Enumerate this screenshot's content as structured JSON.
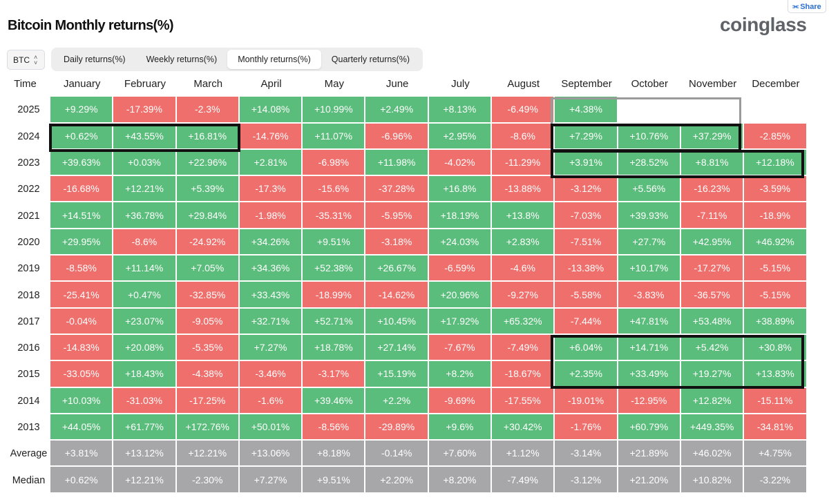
{
  "share_label": "Share",
  "title": "Bitcoin Monthly returns(%)",
  "logo_text": "coinglass",
  "coin_select": "BTC",
  "tabs": [
    {
      "label": "Daily returns(%)",
      "active": false
    },
    {
      "label": "Weekly returns(%)",
      "active": false
    },
    {
      "label": "Monthly returns(%)",
      "active": true
    },
    {
      "label": "Quarterly returns(%)",
      "active": false
    }
  ],
  "table": {
    "corner_label": "Time",
    "months": [
      "January",
      "February",
      "March",
      "April",
      "May",
      "June",
      "July",
      "August",
      "September",
      "October",
      "November",
      "December"
    ],
    "rows": [
      {
        "label": "2025",
        "values": [
          "+9.29%",
          "-17.39%",
          "-2.3%",
          "+14.08%",
          "+10.99%",
          "+2.49%",
          "+8.13%",
          "-6.49%",
          "+4.38%",
          "",
          "",
          ""
        ]
      },
      {
        "label": "2024",
        "values": [
          "+0.62%",
          "+43.55%",
          "+16.81%",
          "-14.76%",
          "+11.07%",
          "-6.96%",
          "+2.95%",
          "-8.6%",
          "+7.29%",
          "+10.76%",
          "+37.29%",
          "-2.85%"
        ]
      },
      {
        "label": "2023",
        "values": [
          "+39.63%",
          "+0.03%",
          "+22.96%",
          "+2.81%",
          "-6.98%",
          "+11.98%",
          "-4.02%",
          "-11.29%",
          "+3.91%",
          "+28.52%",
          "+8.81%",
          "+12.18%"
        ]
      },
      {
        "label": "2022",
        "values": [
          "-16.68%",
          "+12.21%",
          "+5.39%",
          "-17.3%",
          "-15.6%",
          "-37.28%",
          "+16.8%",
          "-13.88%",
          "-3.12%",
          "+5.56%",
          "-16.23%",
          "-3.59%"
        ]
      },
      {
        "label": "2021",
        "values": [
          "+14.51%",
          "+36.78%",
          "+29.84%",
          "-1.98%",
          "-35.31%",
          "-5.95%",
          "+18.19%",
          "+13.8%",
          "-7.03%",
          "+39.93%",
          "-7.11%",
          "-18.9%"
        ]
      },
      {
        "label": "2020",
        "values": [
          "+29.95%",
          "-8.6%",
          "-24.92%",
          "+34.26%",
          "+9.51%",
          "-3.18%",
          "+24.03%",
          "+2.83%",
          "-7.51%",
          "+27.7%",
          "+42.95%",
          "+46.92%"
        ]
      },
      {
        "label": "2019",
        "values": [
          "-8.58%",
          "+11.14%",
          "+7.05%",
          "+34.36%",
          "+52.38%",
          "+26.67%",
          "-6.59%",
          "-4.6%",
          "-13.38%",
          "+10.17%",
          "-17.27%",
          "-5.15%"
        ]
      },
      {
        "label": "2018",
        "values": [
          "-25.41%",
          "+0.47%",
          "-32.85%",
          "+33.43%",
          "-18.99%",
          "-14.62%",
          "+20.96%",
          "-9.27%",
          "-5.58%",
          "-3.83%",
          "-36.57%",
          "-5.15%"
        ]
      },
      {
        "label": "2017",
        "values": [
          "-0.04%",
          "+23.07%",
          "-9.05%",
          "+32.71%",
          "+52.71%",
          "+10.45%",
          "+17.92%",
          "+65.32%",
          "-7.44%",
          "+47.81%",
          "+53.48%",
          "+38.89%"
        ]
      },
      {
        "label": "2016",
        "values": [
          "-14.83%",
          "+20.08%",
          "-5.35%",
          "+7.27%",
          "+18.78%",
          "+27.14%",
          "-7.67%",
          "-7.49%",
          "+6.04%",
          "+14.71%",
          "+5.42%",
          "+30.8%"
        ]
      },
      {
        "label": "2015",
        "values": [
          "-33.05%",
          "+18.43%",
          "-4.38%",
          "-3.46%",
          "-3.17%",
          "+15.19%",
          "+8.2%",
          "-18.67%",
          "+2.35%",
          "+33.49%",
          "+19.27%",
          "+13.83%"
        ]
      },
      {
        "label": "2014",
        "values": [
          "+10.03%",
          "-31.03%",
          "-17.25%",
          "-1.6%",
          "+39.46%",
          "+2.2%",
          "-9.69%",
          "-17.55%",
          "-19.01%",
          "-12.95%",
          "+12.82%",
          "-15.11%"
        ]
      },
      {
        "label": "2013",
        "values": [
          "+44.05%",
          "+61.77%",
          "+172.76%",
          "+50.01%",
          "-8.56%",
          "-29.89%",
          "+9.6%",
          "+30.42%",
          "-1.76%",
          "+60.79%",
          "+449.35%",
          "-34.81%"
        ]
      }
    ],
    "summary_rows": [
      {
        "label": "Average",
        "values": [
          "+3.81%",
          "+13.12%",
          "+12.21%",
          "+13.06%",
          "+8.18%",
          "-0.14%",
          "+7.60%",
          "+1.12%",
          "-3.14%",
          "+21.89%",
          "+46.02%",
          "+4.75%"
        ]
      },
      {
        "label": "Median",
        "values": [
          "+0.62%",
          "+12.21%",
          "-2.30%",
          "+7.27%",
          "+9.51%",
          "+2.20%",
          "+8.20%",
          "-7.49%",
          "-3.12%",
          "+21.20%",
          "+10.82%",
          "-3.22%"
        ]
      }
    ]
  },
  "colors": {
    "positive": "#5bbd7b",
    "negative": "#ef6f6c",
    "summary": "#a7a7a9",
    "highlight": "#111111"
  }
}
